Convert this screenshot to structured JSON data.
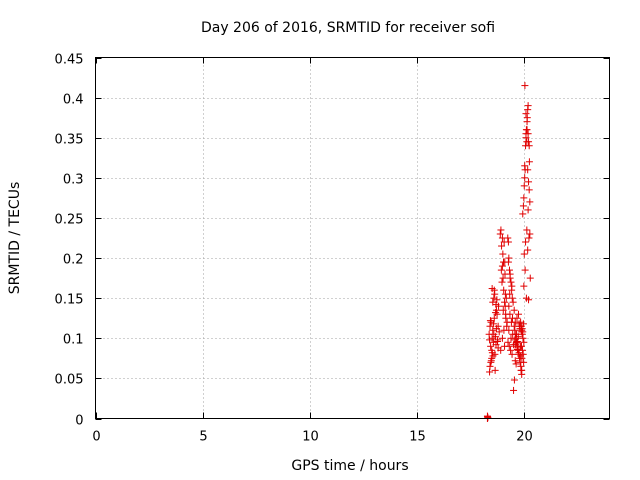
{
  "chart_data": {
    "type": "scatter",
    "title": "Day 206 of 2016, SRMTID for receiver sofi",
    "xlabel": "GPS time / hours",
    "ylabel": "SRMTID / TECUs",
    "xlim": [
      0,
      24
    ],
    "ylim": [
      0,
      0.45
    ],
    "xticks": [
      0,
      5,
      10,
      15,
      20
    ],
    "xtick_labels": [
      "0",
      "5",
      "10",
      "15",
      "20"
    ],
    "yticks": [
      0,
      0.05,
      0.1,
      0.15,
      0.2,
      0.25,
      0.3,
      0.35,
      0.4,
      0.45
    ],
    "ytick_labels": [
      "0",
      "0.05",
      "0.1",
      "0.15",
      "0.2",
      "0.25",
      "0.3",
      "0.35",
      "0.4",
      "0.45"
    ],
    "grid": true,
    "marker": "plus",
    "color": "#e00000",
    "series": [
      {
        "x": [
          18.3,
          18.3,
          18.32,
          18.31,
          18.38,
          18.4,
          18.42,
          18.45,
          18.47,
          18.5,
          18.52,
          18.55,
          18.58,
          18.6,
          18.62,
          18.65,
          18.68,
          18.7,
          18.72,
          18.75,
          18.78,
          18.8,
          18.82,
          18.85,
          18.42,
          18.48,
          18.55,
          18.6,
          18.66,
          18.72,
          18.5,
          18.58,
          18.64,
          18.4,
          18.46,
          18.53,
          18.62,
          18.7,
          18.77,
          18.44,
          18.56,
          18.68,
          18.8,
          18.52,
          18.74,
          18.9,
          18.93,
          18.96,
          19.0,
          19.03,
          19.06,
          19.1,
          19.13,
          19.16,
          19.2,
          19.0,
          19.05,
          19.12,
          19.18,
          18.95,
          19.02,
          19.08,
          19.15,
          19.22,
          19.0,
          19.1,
          18.98,
          19.07,
          19.14,
          19.04,
          18.92,
          19.11,
          19.25,
          19.28,
          19.3,
          19.33,
          19.36,
          19.4,
          19.43,
          19.46,
          19.5,
          19.3,
          19.35,
          19.42,
          19.48,
          19.26,
          19.32,
          19.38,
          19.45,
          19.52,
          19.28,
          19.36,
          19.44,
          19.3,
          19.4,
          19.34,
          19.55,
          19.47,
          19.55,
          19.58,
          19.6,
          19.63,
          19.66,
          19.7,
          19.73,
          19.76,
          19.8,
          19.83,
          19.86,
          19.9,
          19.6,
          19.68,
          19.75,
          19.82,
          19.88,
          19.58,
          19.64,
          19.72,
          19.78,
          19.85,
          19.62,
          19.7,
          19.8,
          19.66,
          19.74,
          19.84,
          19.6,
          19.9,
          19.52,
          19.7,
          19.78,
          19.64,
          19.56,
          19.85,
          19.88,
          19.9,
          19.93,
          19.96,
          20.0,
          19.92,
          19.95,
          19.98,
          19.89,
          19.94,
          19.97,
          19.91,
          19.99,
          19.87,
          19.95,
          19.98,
          20.0,
          20.02,
          20.04,
          20.06,
          20.08,
          20.1,
          20.12,
          20.15,
          20.18,
          20.2,
          20.22,
          20.25,
          20.28,
          20.3,
          20.05,
          20.1,
          20.15,
          20.2,
          20.25,
          20.02,
          20.08,
          20.14,
          20.18,
          20.22,
          20.28,
          20.0,
          20.06,
          20.12,
          20.18,
          20.24,
          20.1,
          20.16,
          20.2,
          20.26,
          20.04,
          20.14,
          20.22
        ],
        "y": [
          0.0,
          0.003,
          0.001,
          0.002,
          0.105,
          0.098,
          0.115,
          0.09,
          0.12,
          0.085,
          0.1,
          0.11,
          0.095,
          0.105,
          0.125,
          0.08,
          0.102,
          0.092,
          0.112,
          0.13,
          0.098,
          0.088,
          0.14,
          0.108,
          0.065,
          0.072,
          0.145,
          0.15,
          0.06,
          0.135,
          0.075,
          0.118,
          0.155,
          0.058,
          0.07,
          0.082,
          0.16,
          0.142,
          0.096,
          0.122,
          0.078,
          0.132,
          0.115,
          0.162,
          0.148,
          0.23,
          0.235,
          0.215,
          0.19,
          0.175,
          0.16,
          0.145,
          0.14,
          0.125,
          0.115,
          0.225,
          0.195,
          0.18,
          0.15,
          0.185,
          0.205,
          0.22,
          0.13,
          0.12,
          0.1,
          0.09,
          0.17,
          0.11,
          0.155,
          0.135,
          0.085,
          0.195,
          0.225,
          0.22,
          0.2,
          0.185,
          0.18,
          0.17,
          0.16,
          0.15,
          0.145,
          0.14,
          0.13,
          0.12,
          0.105,
          0.095,
          0.09,
          0.085,
          0.08,
          0.092,
          0.195,
          0.175,
          0.165,
          0.11,
          0.1,
          0.155,
          0.135,
          0.125,
          0.115,
          0.11,
          0.105,
          0.1,
          0.095,
          0.09,
          0.085,
          0.08,
          0.075,
          0.07,
          0.065,
          0.06,
          0.12,
          0.125,
          0.13,
          0.112,
          0.108,
          0.098,
          0.094,
          0.088,
          0.082,
          0.078,
          0.092,
          0.086,
          0.115,
          0.105,
          0.102,
          0.09,
          0.072,
          0.055,
          0.035,
          0.096,
          0.118,
          0.068,
          0.048,
          0.12,
          0.115,
          0.11,
          0.105,
          0.1,
          0.095,
          0.112,
          0.108,
          0.118,
          0.09,
          0.085,
          0.08,
          0.075,
          0.07,
          0.06,
          0.255,
          0.265,
          0.275,
          0.29,
          0.3,
          0.31,
          0.34,
          0.355,
          0.36,
          0.37,
          0.385,
          0.39,
          0.345,
          0.285,
          0.23,
          0.175,
          0.415,
          0.38,
          0.36,
          0.355,
          0.34,
          0.205,
          0.22,
          0.235,
          0.31,
          0.295,
          0.27,
          0.165,
          0.185,
          0.15,
          0.21,
          0.225,
          0.35,
          0.375,
          0.26,
          0.32,
          0.315,
          0.345,
          0.148
        ]
      }
    ]
  }
}
